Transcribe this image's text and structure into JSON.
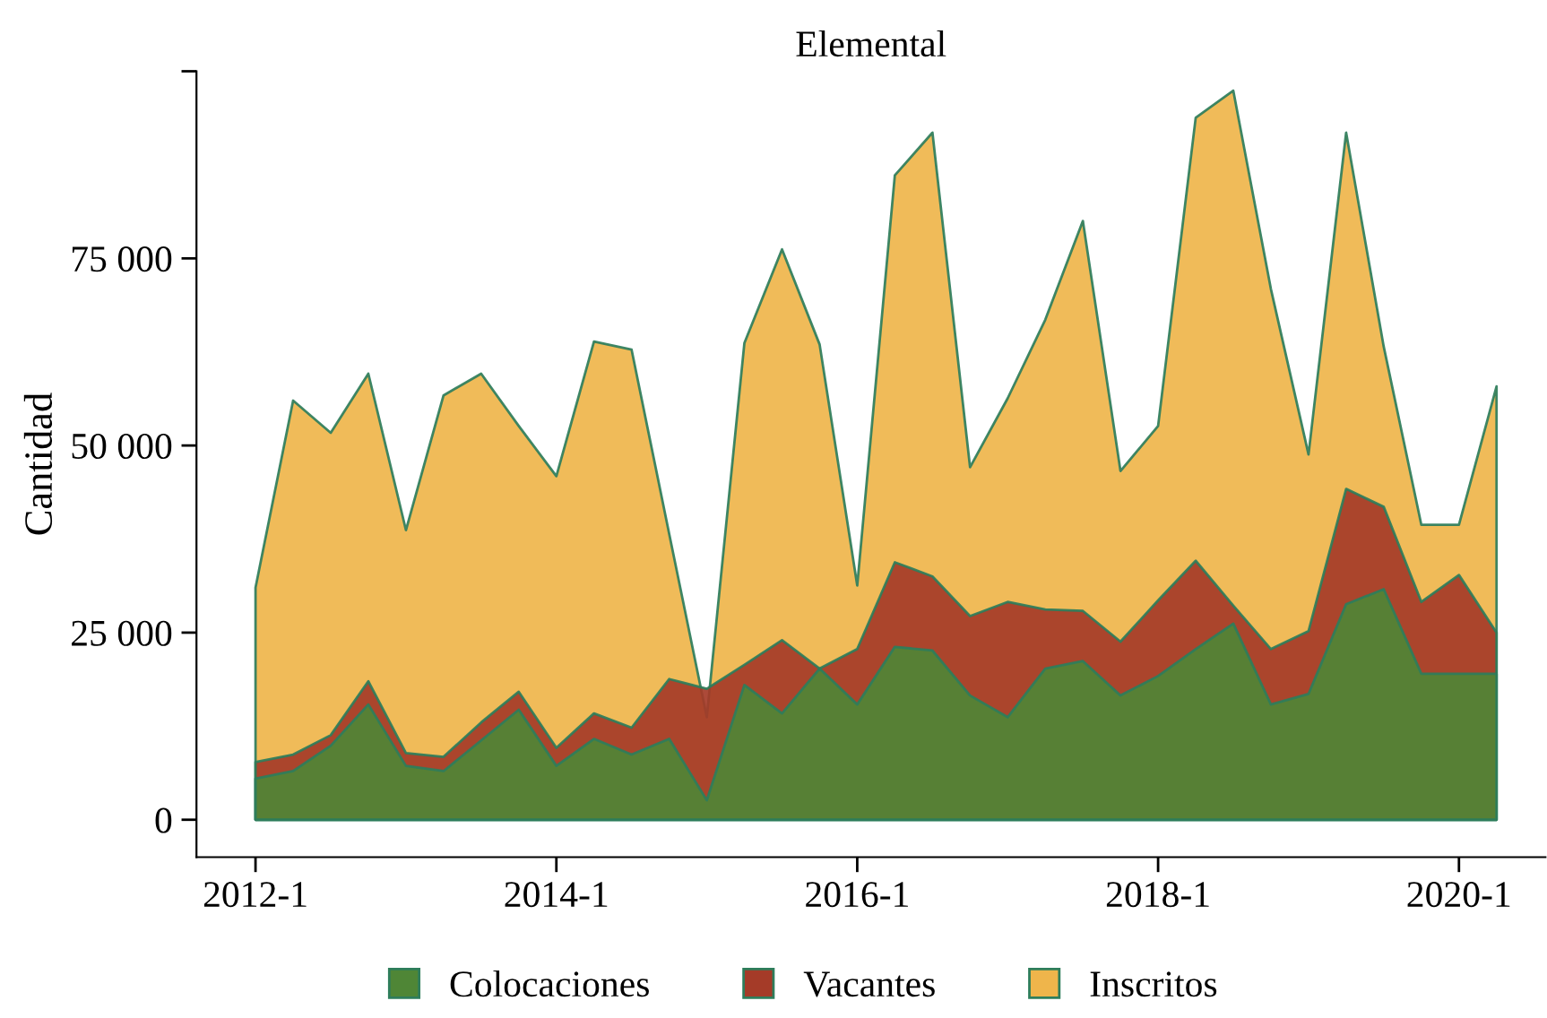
{
  "chart_data": {
    "type": "area",
    "title": "Elemental",
    "ylabel": "Cantidad",
    "categories": [
      "2012-1",
      null,
      null,
      null,
      null,
      null,
      null,
      null,
      "2014-1",
      null,
      null,
      null,
      null,
      null,
      null,
      null,
      "2016-1",
      null,
      null,
      null,
      null,
      null,
      null,
      null,
      "2018-1",
      null,
      null,
      null,
      null,
      null,
      null,
      null,
      "2020-1",
      null
    ],
    "series": [
      {
        "name": "Colocaciones",
        "color": "#4f8636",
        "values": [
          5500,
          6500,
          9900,
          15400,
          7200,
          6500,
          10600,
          14700,
          7200,
          10800,
          8700,
          10800,
          2600,
          18000,
          14200,
          20200,
          15400,
          23100,
          22600,
          16600,
          13700,
          20200,
          21200,
          16600,
          19200,
          22800,
          26200,
          15400,
          16800,
          28800,
          30800,
          19500,
          19500,
          19500
        ]
      },
      {
        "name": "Vacantes",
        "color": "#a53b28",
        "values": [
          7700,
          8700,
          11300,
          18500,
          8900,
          8400,
          13000,
          17100,
          9600,
          14200,
          12300,
          18800,
          17500,
          20700,
          24000,
          20200,
          22800,
          34400,
          32500,
          27200,
          29100,
          28100,
          27900,
          23800,
          29300,
          34600,
          28600,
          22800,
          25200,
          44200,
          41800,
          29100,
          32700,
          25000
        ]
      },
      {
        "name": "Inscritos",
        "color": "#efb54b",
        "values": [
          31000,
          56000,
          51700,
          59600,
          38700,
          56700,
          59600,
          52600,
          45900,
          63900,
          62800,
          38200,
          13700,
          63700,
          76200,
          63500,
          31300,
          86100,
          91800,
          47100,
          56300,
          66800,
          80000,
          46600,
          52600,
          93800,
          97400,
          70900,
          48800,
          91800,
          63200,
          39400,
          39400,
          57900
        ]
      }
    ],
    "ylim": [
      -5000,
      100000
    ],
    "yticks": [
      0,
      {
        "value": 25000,
        "label": "25 000"
      },
      {
        "value": 50000,
        "label": "50 000"
      },
      {
        "value": 75000,
        "label": "75 000"
      },
      {
        "value": 100000,
        "label": null
      }
    ],
    "grid": false,
    "legend": "bottom"
  }
}
